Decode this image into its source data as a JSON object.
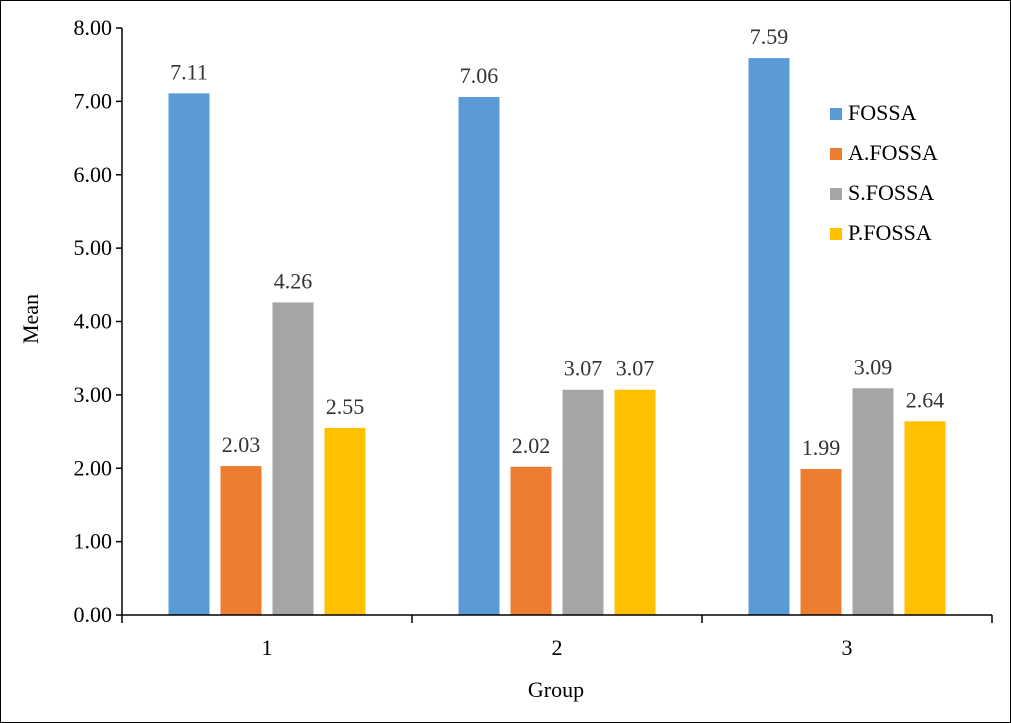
{
  "chart_data": {
    "type": "bar",
    "title": "",
    "xlabel": "Group",
    "ylabel": "Mean",
    "categories": [
      "1",
      "2",
      "3"
    ],
    "ylim": [
      0,
      8
    ],
    "yticks": [
      "0.00",
      "1.00",
      "2.00",
      "3.00",
      "4.00",
      "5.00",
      "6.00",
      "7.00",
      "8.00"
    ],
    "grid": false,
    "legend_position": "right",
    "series": [
      {
        "name": "FOSSA",
        "color": "#5b9bd5",
        "values": [
          7.11,
          7.06,
          7.59
        ],
        "labels": [
          "7.11",
          "7.06",
          "7.59"
        ]
      },
      {
        "name": "A.FOSSA",
        "color": "#ed7d31",
        "values": [
          2.03,
          2.02,
          1.99
        ],
        "labels": [
          "2.03",
          "2.02",
          "1.99"
        ]
      },
      {
        "name": "S.FOSSA",
        "color": "#a5a5a5",
        "values": [
          4.26,
          3.07,
          3.09
        ],
        "labels": [
          "4.26",
          "3.07",
          "3.09"
        ]
      },
      {
        "name": "P.FOSSA",
        "color": "#ffc000",
        "values": [
          2.55,
          3.07,
          2.64
        ],
        "labels": [
          "2.55",
          "3.07",
          "2.64"
        ]
      }
    ]
  }
}
